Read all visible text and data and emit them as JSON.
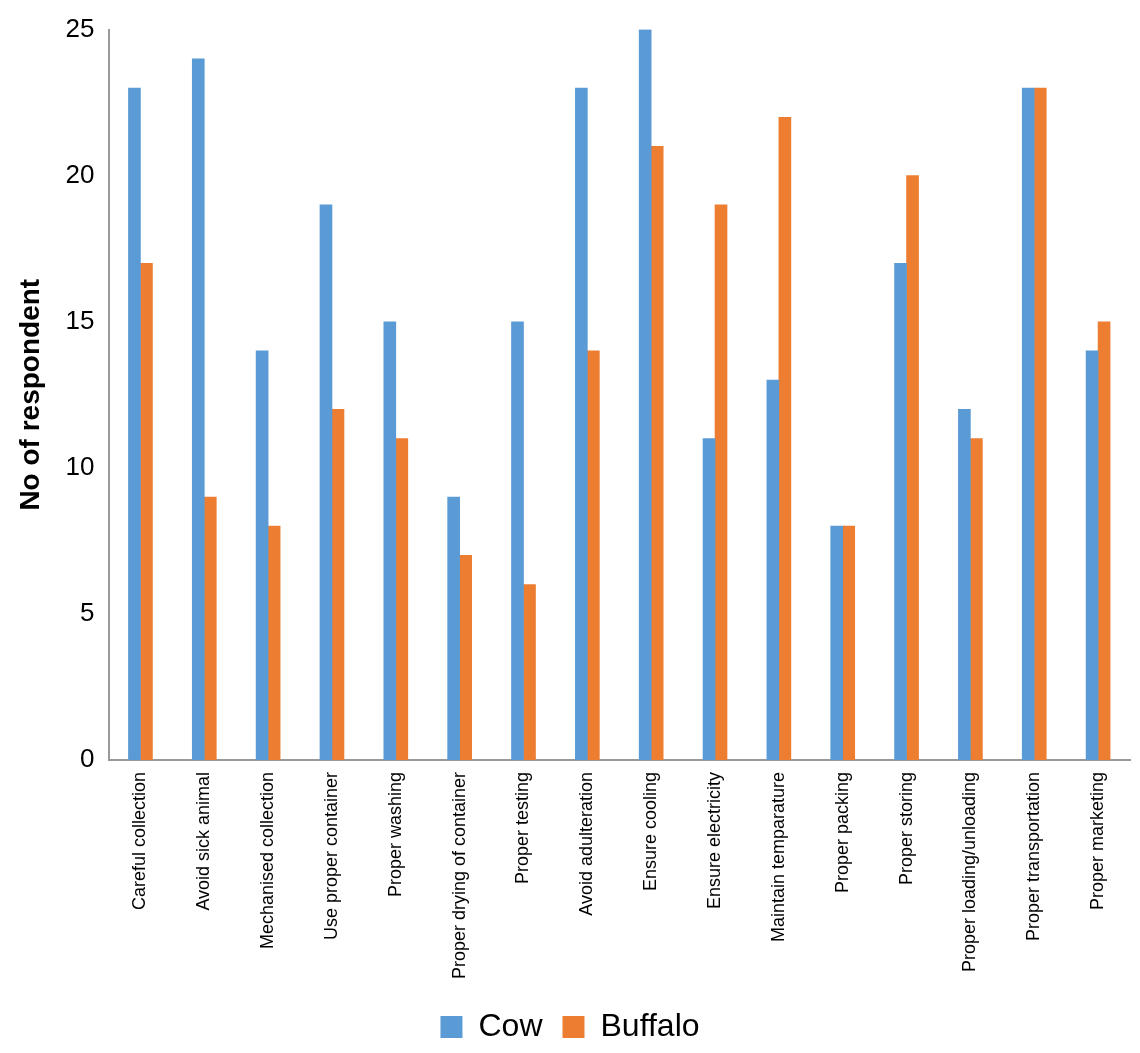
{
  "chart_data": {
    "type": "bar",
    "ylabel": "No of respondent",
    "categories": [
      "Careful collection",
      "Avoid sick animal",
      "Mechanised collection",
      "Use proper container",
      "Proper washing",
      "Proper drying of container",
      "Proper testing",
      "Avoid adulteration",
      "Ensure cooling",
      "Ensure electricity",
      "Maintain temparature",
      "Proper packing",
      "Proper storing",
      "Proper loading/unloading",
      "Proper transportation",
      "Proper marketing"
    ],
    "series": [
      {
        "name": "Cow",
        "color": "#5b9bd5",
        "values": [
          23,
          24,
          14,
          19,
          15,
          9,
          15,
          23,
          25,
          11,
          13,
          8,
          17,
          12,
          23,
          14
        ]
      },
      {
        "name": "Buffalo",
        "color": "#ed7d31",
        "values": [
          17,
          9,
          8,
          12,
          11,
          7,
          6,
          14,
          21,
          19,
          22,
          8,
          20,
          11,
          23,
          15
        ]
      }
    ],
    "ylim": [
      0,
      25
    ],
    "yticks": [
      0,
      5,
      10,
      15,
      20,
      25
    ],
    "grid": false,
    "legend": "bottom"
  }
}
